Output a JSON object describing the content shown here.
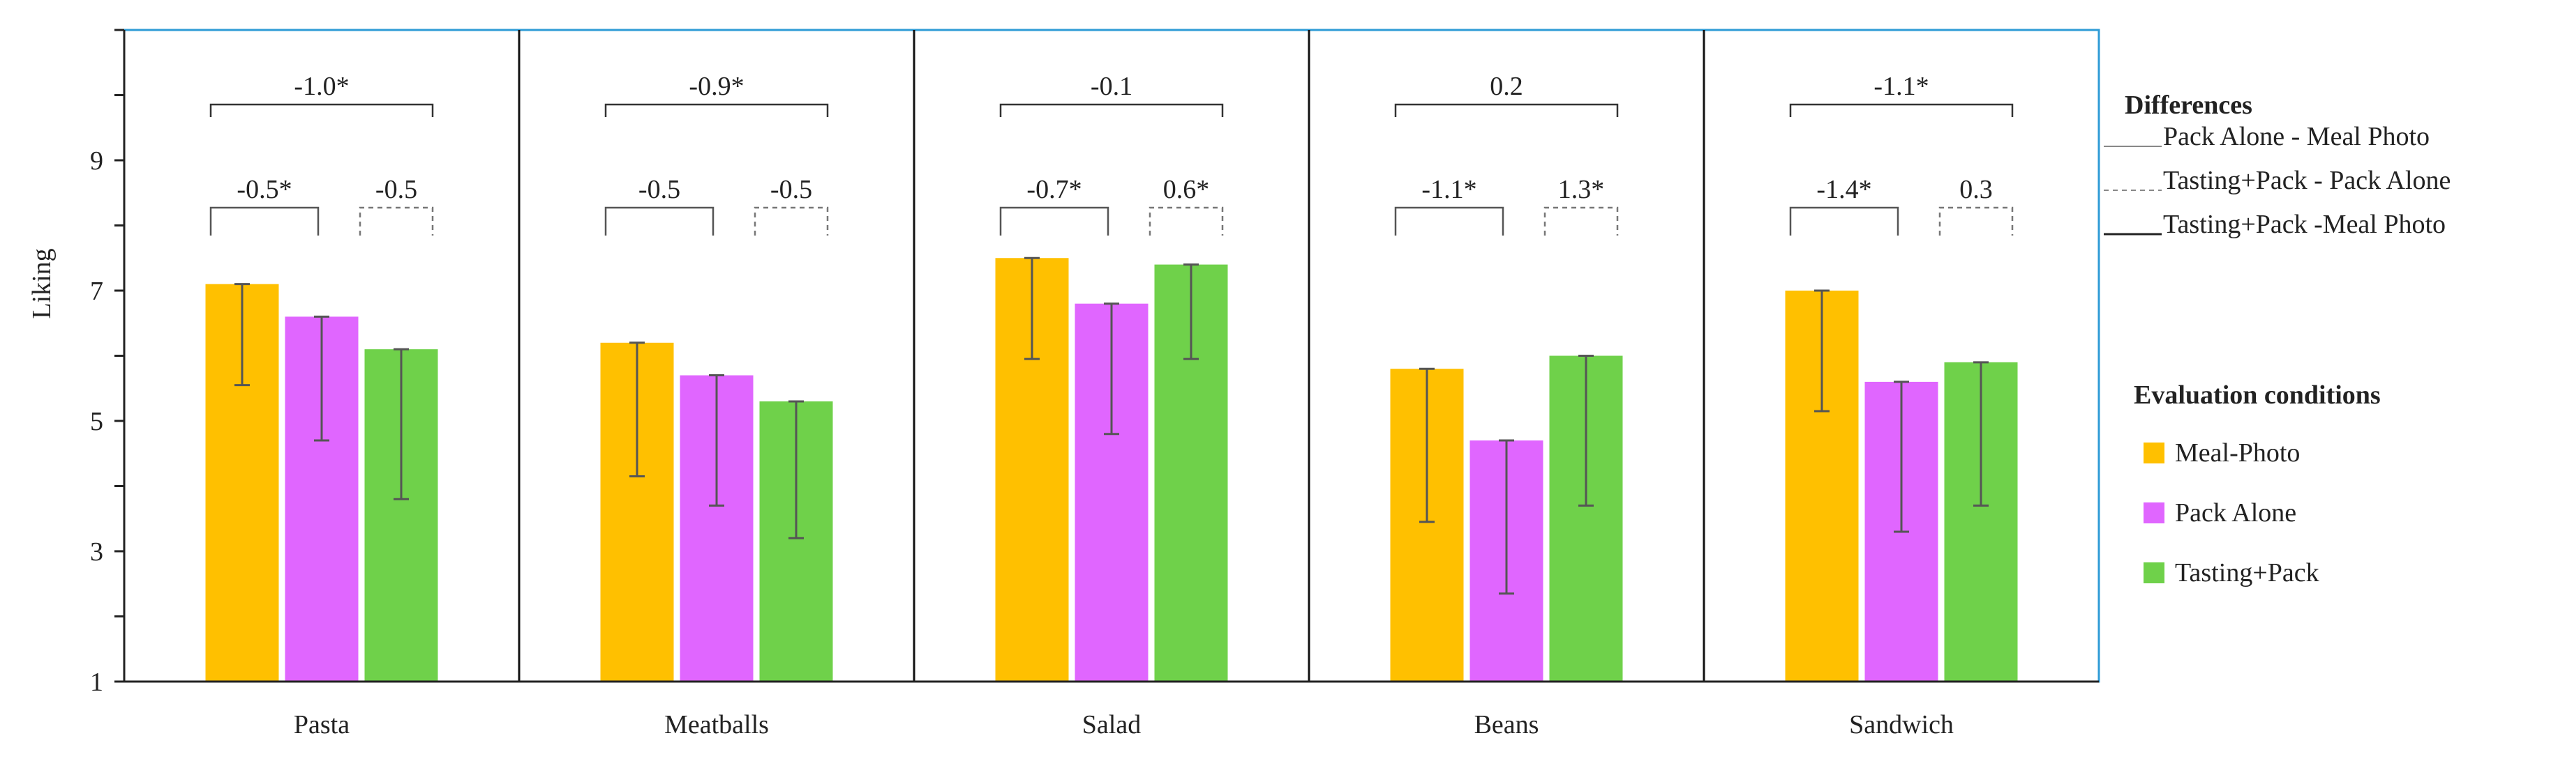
{
  "chart_data": {
    "type": "bar",
    "title": "",
    "xlabel": "",
    "ylabel": "Liking",
    "ylim": [
      1,
      11
    ],
    "yticks": [
      "1",
      "3",
      "5",
      "7",
      "9"
    ],
    "categories": [
      "Pasta",
      "Meatballs",
      "Salad",
      "Beans",
      "Sandwich"
    ],
    "series": [
      {
        "name": "Meal-Photo",
        "color": "#ffc000",
        "values": [
          7.1,
          6.2,
          7.5,
          5.8,
          7.0
        ],
        "error_low": [
          5.55,
          4.15,
          5.95,
          3.45,
          5.15
        ]
      },
      {
        "name": "Pack Alone",
        "color": "#e066ff",
        "values": [
          6.6,
          5.7,
          6.8,
          4.7,
          5.6
        ],
        "error_low": [
          4.7,
          3.7,
          4.8,
          2.35,
          3.3
        ]
      },
      {
        "name": "Tasting+Pack",
        "color": "#6fd14a",
        "values": [
          6.1,
          5.3,
          7.4,
          6.0,
          5.9
        ],
        "error_low": [
          3.8,
          3.2,
          5.95,
          3.7,
          3.7
        ]
      }
    ],
    "differences": [
      {
        "meal_pack": "-0.5*",
        "pack_taste": "-0.5",
        "meal_taste": "-1.0*"
      },
      {
        "meal_pack": "-0.5",
        "pack_taste": "-0.5",
        "meal_taste": "-0.9*"
      },
      {
        "meal_pack": "-0.7*",
        "pack_taste": "0.6*",
        "meal_taste": "-0.1"
      },
      {
        "meal_pack": "-1.1*",
        "pack_taste": "1.3*",
        "meal_taste": "0.2"
      },
      {
        "meal_pack": "-1.4*",
        "pack_taste": "0.3",
        "meal_taste": "-1.1*"
      }
    ],
    "legend_differences": {
      "title": "Differences",
      "items": [
        "Pack Alone - Meal Photo",
        "Tasting+Pack - Pack Alone",
        "Tasting+Pack -Meal Photo"
      ]
    },
    "legend_conditions": {
      "title": "Evaluation conditions"
    },
    "frame_color": "#2e9bd6"
  }
}
